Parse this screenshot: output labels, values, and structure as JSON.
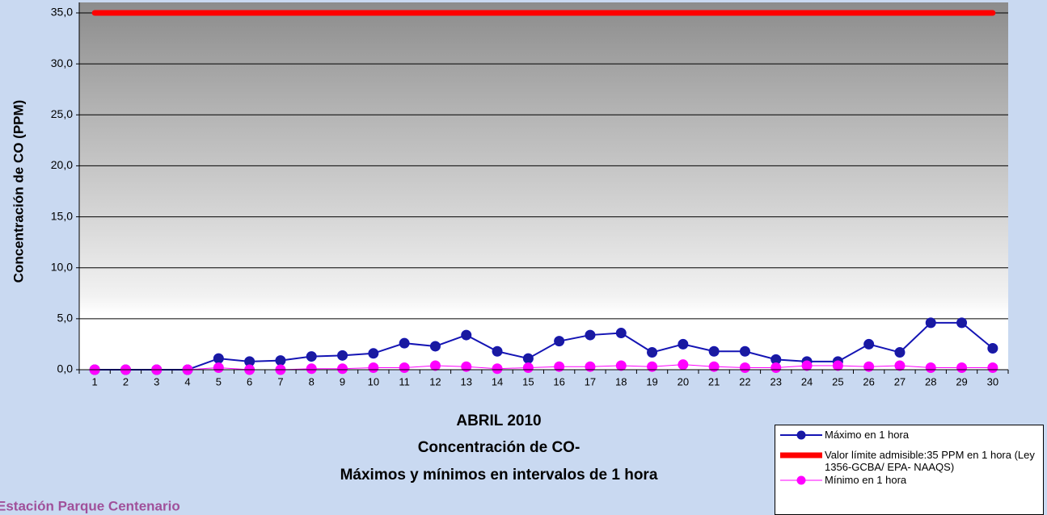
{
  "chart_data": {
    "type": "line",
    "title_lines": [
      "ABRIL 2010",
      "Concentración de CO-",
      "Máximos y mínimos en intervalos de 1 hora"
    ],
    "station": "Estación Parque Centenario",
    "y_label": "Concentración de CO (PPM)",
    "categories": [
      "1",
      "2",
      "3",
      "4",
      "5",
      "6",
      "7",
      "8",
      "9",
      "10",
      "11",
      "12",
      "13",
      "14",
      "15",
      "16",
      "17",
      "18",
      "19",
      "20",
      "21",
      "22",
      "23",
      "24",
      "25",
      "26",
      "27",
      "28",
      "29",
      "30"
    ],
    "series": [
      {
        "name": "Máximo en 1 hora",
        "color": "#1414b4",
        "markers": true,
        "values": [
          0,
          0,
          0,
          0,
          1.1,
          0.8,
          0.9,
          1.3,
          1.4,
          1.6,
          2.6,
          2.3,
          3.4,
          1.8,
          1.1,
          2.8,
          3.4,
          3.6,
          1.7,
          2.5,
          1.8,
          1.8,
          1.0,
          0.8,
          0.8,
          2.5,
          1.7,
          4.6,
          4.6,
          2.1
        ]
      },
      {
        "name": "Valor límite admisible:35 PPM en 1 hora (Ley 1356-GCBA/ EPA- NAAQS)",
        "color": "#ff0000",
        "markers": false,
        "values": [
          35,
          35,
          35,
          35,
          35,
          35,
          35,
          35,
          35,
          35,
          35,
          35,
          35,
          35,
          35,
          35,
          35,
          35,
          35,
          35,
          35,
          35,
          35,
          35,
          35,
          35,
          35,
          35,
          35,
          35
        ]
      },
      {
        "name": "Mínimo en 1 hora",
        "color": "#ff00ff",
        "markers": true,
        "values": [
          0,
          0,
          0,
          0,
          0.2,
          0,
          0,
          0.1,
          0.1,
          0.2,
          0.2,
          0.4,
          0.3,
          0.1,
          0.2,
          0.3,
          0.3,
          0.4,
          0.3,
          0.5,
          0.3,
          0.2,
          0.2,
          0.4,
          0.4,
          0.3,
          0.4,
          0.2,
          0.2,
          0.2
        ]
      }
    ],
    "ylim": [
      0,
      35
    ],
    "yticks": [
      {
        "value": 0,
        "label": "0,0"
      },
      {
        "value": 5,
        "label": "5,0"
      },
      {
        "value": 10,
        "label": "10,0"
      },
      {
        "value": 15,
        "label": "15,0"
      },
      {
        "value": 20,
        "label": "20,0"
      },
      {
        "value": 25,
        "label": "25,0"
      },
      {
        "value": 30,
        "label": "30,0"
      },
      {
        "value": 35,
        "label": "35,0"
      }
    ],
    "grid": true,
    "legend": "bottom-right"
  }
}
